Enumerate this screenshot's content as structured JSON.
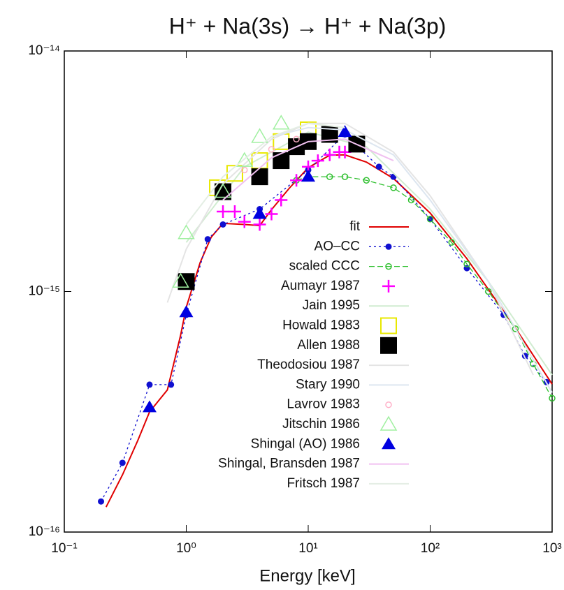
{
  "chart_data": {
    "type": "scatter",
    "title": "H⁺ + Na(3s) → H⁺ + Na(3p)",
    "x_label": "Energy [keV]",
    "log_x": true,
    "log_y": true,
    "xlim": [
      0.1,
      1000
    ],
    "ylim": [
      1e-16,
      1e-14
    ],
    "xticks": [
      {
        "value": 0.1,
        "label": "10⁻¹"
      },
      {
        "value": 1,
        "label": "10⁰"
      },
      {
        "value": 10,
        "label": "10¹"
      },
      {
        "value": 100,
        "label": "10²"
      },
      {
        "value": 1000,
        "label": "10³"
      }
    ],
    "yticks": [
      {
        "value": 1e-16,
        "label": "10⁻¹⁶"
      },
      {
        "value": 1e-15,
        "label": "10⁻¹⁵"
      },
      {
        "value": 1e-14,
        "label": "10⁻¹⁴"
      }
    ],
    "legend": "center-right",
    "series": [
      {
        "name": "fit",
        "color": "#e00000",
        "style": "line",
        "marker": "none",
        "x": [
          0.22,
          0.3,
          0.4,
          0.5,
          0.7,
          0.9,
          1.0,
          1.3,
          1.6,
          2,
          3,
          4,
          5,
          7,
          10,
          15,
          20,
          30,
          50,
          100,
          200,
          500,
          1000
        ],
        "values": [
          1.27e-16,
          1.73e-16,
          2.4e-16,
          3.16e-16,
          3.9e-16,
          6.6e-16,
          8.6e-16,
          1.32e-15,
          1.68e-15,
          1.92e-15,
          1.9e-15,
          1.88e-15,
          2.19e-15,
          2.69e-15,
          3.27e-15,
          3.69e-15,
          3.7e-15,
          3.45e-15,
          2.95e-15,
          2.12e-15,
          1.37e-15,
          7.05e-16,
          4.12e-16
        ]
      },
      {
        "name": "AO–CC",
        "color": "#1010d0",
        "style": "linespoints",
        "marker": "circle-filled",
        "dash": "3,4",
        "x": [
          0.2,
          0.3,
          0.5,
          0.75,
          1.0,
          1.5,
          2,
          4,
          10,
          20,
          38,
          50,
          100,
          200,
          400,
          600,
          900
        ],
        "values": [
          1.34e-16,
          1.94e-16,
          4.1e-16,
          4.1e-16,
          8e-16,
          1.65e-15,
          1.9e-15,
          2.2e-15,
          3.2e-15,
          4.5e-15,
          3.3e-15,
          3e-15,
          2e-15,
          1.25e-15,
          8e-16,
          5.4e-16,
          4.2e-16
        ]
      },
      {
        "name": "scaled CCC",
        "color": "#30c030",
        "style": "linespoints",
        "marker": "circle-open",
        "dash": "8,4",
        "x": [
          8,
          10,
          15,
          20,
          30,
          50,
          70,
          100,
          150,
          200,
          300,
          500,
          700,
          1000
        ],
        "values": [
          2.9e-15,
          3e-15,
          3e-15,
          3e-15,
          2.9e-15,
          2.7e-15,
          2.4e-15,
          2e-15,
          1.6e-15,
          1.3e-15,
          1e-15,
          7e-16,
          5e-16,
          3.6e-16
        ]
      },
      {
        "name": "Aumayr 1987",
        "color": "#ff00ff",
        "style": "points",
        "marker": "plus",
        "x": [
          2,
          2.5,
          3,
          4,
          5,
          6,
          8,
          10,
          12,
          15,
          18,
          20
        ],
        "values": [
          2.15e-15,
          2.15e-15,
          1.95e-15,
          1.9e-15,
          2.1e-15,
          2.4e-15,
          2.9e-15,
          3.3e-15,
          3.5e-15,
          3.7e-15,
          3.8e-15,
          3.8e-15
        ]
      },
      {
        "name": "Jain 1995",
        "color": "#d0ecd0",
        "style": "line",
        "marker": "none",
        "x": [
          1,
          3,
          10,
          30,
          100,
          300,
          1000
        ],
        "values": [
          1.6e-15,
          3.3e-15,
          4.6e-15,
          4e-15,
          2.2e-15,
          1.1e-15,
          4.5e-16
        ]
      },
      {
        "name": "Howald 1983",
        "color": "#e8e800",
        "style": "points",
        "marker": "square-open",
        "x": [
          1.8,
          2.5,
          4,
          6,
          10
        ],
        "values": [
          2.7e-15,
          3.1e-15,
          3.5e-15,
          4.2e-15,
          4.7e-15
        ]
      },
      {
        "name": "Allen 1988",
        "color": "#000000",
        "style": "points",
        "marker": "square-filled",
        "x": [
          1.0,
          2,
          4,
          6,
          8,
          10,
          15,
          25
        ],
        "values": [
          1.1e-15,
          2.6e-15,
          3e-15,
          3.5e-15,
          4e-15,
          4.2e-15,
          4.5e-15,
          4.1e-15
        ]
      },
      {
        "name": "Theodosiou 1987",
        "color": "#e4e4e4",
        "style": "line",
        "marker": "none",
        "x": [
          0.7,
          1,
          2,
          5,
          10,
          20,
          50,
          100,
          300,
          700
        ],
        "values": [
          9e-16,
          1.5e-15,
          2.8e-15,
          4.3e-15,
          5e-15,
          5e-15,
          3.8e-15,
          2.5e-15,
          1.1e-15,
          4.5e-16
        ]
      },
      {
        "name": "Stary 1990",
        "color": "#dde6f0",
        "style": "line",
        "marker": "none",
        "x": [
          5,
          10,
          20,
          50,
          100,
          300,
          1000
        ],
        "values": [
          4.4e-15,
          4.8e-15,
          4.7e-15,
          3.7e-15,
          2.4e-15,
          1.1e-15,
          3.8e-16
        ]
      },
      {
        "name": "Lavrov 1983",
        "color": "#ffb0c8",
        "style": "points",
        "marker": "circle-open",
        "x": [
          3,
          5,
          8
        ],
        "values": [
          3.2e-15,
          3.9e-15,
          4.3e-15
        ]
      },
      {
        "name": "Jitschin 1986",
        "color": "#a0f0a0",
        "style": "points",
        "marker": "triangle-open",
        "x": [
          0.9,
          1.0,
          2,
          3,
          4,
          6
        ],
        "values": [
          1.1e-15,
          1.75e-15,
          2.6e-15,
          3.5e-15,
          4.4e-15,
          5e-15
        ]
      },
      {
        "name": "Shingal (AO) 1986",
        "color": "#0000e0",
        "style": "points",
        "marker": "triangle-filled",
        "x": [
          0.5,
          1.0,
          4,
          10,
          20
        ],
        "values": [
          3.3e-16,
          8.2e-16,
          2.1e-15,
          3e-15,
          4.6e-15
        ]
      },
      {
        "name": "Shingal, Bransden 1987",
        "color": "#f0c0f0",
        "style": "line",
        "marker": "none",
        "x": [
          2,
          5,
          10,
          20,
          50
        ],
        "values": [
          2.4e-15,
          3.6e-15,
          4.2e-15,
          4.3e-15,
          3.5e-15
        ]
      },
      {
        "name": "Fritsch 1987",
        "color": "#e4eee4",
        "style": "line",
        "marker": "none",
        "x": [
          1,
          2,
          5,
          10,
          20
        ],
        "values": [
          1.9e-15,
          3e-15,
          4.4e-15,
          5e-15,
          4.8e-15
        ]
      }
    ]
  }
}
